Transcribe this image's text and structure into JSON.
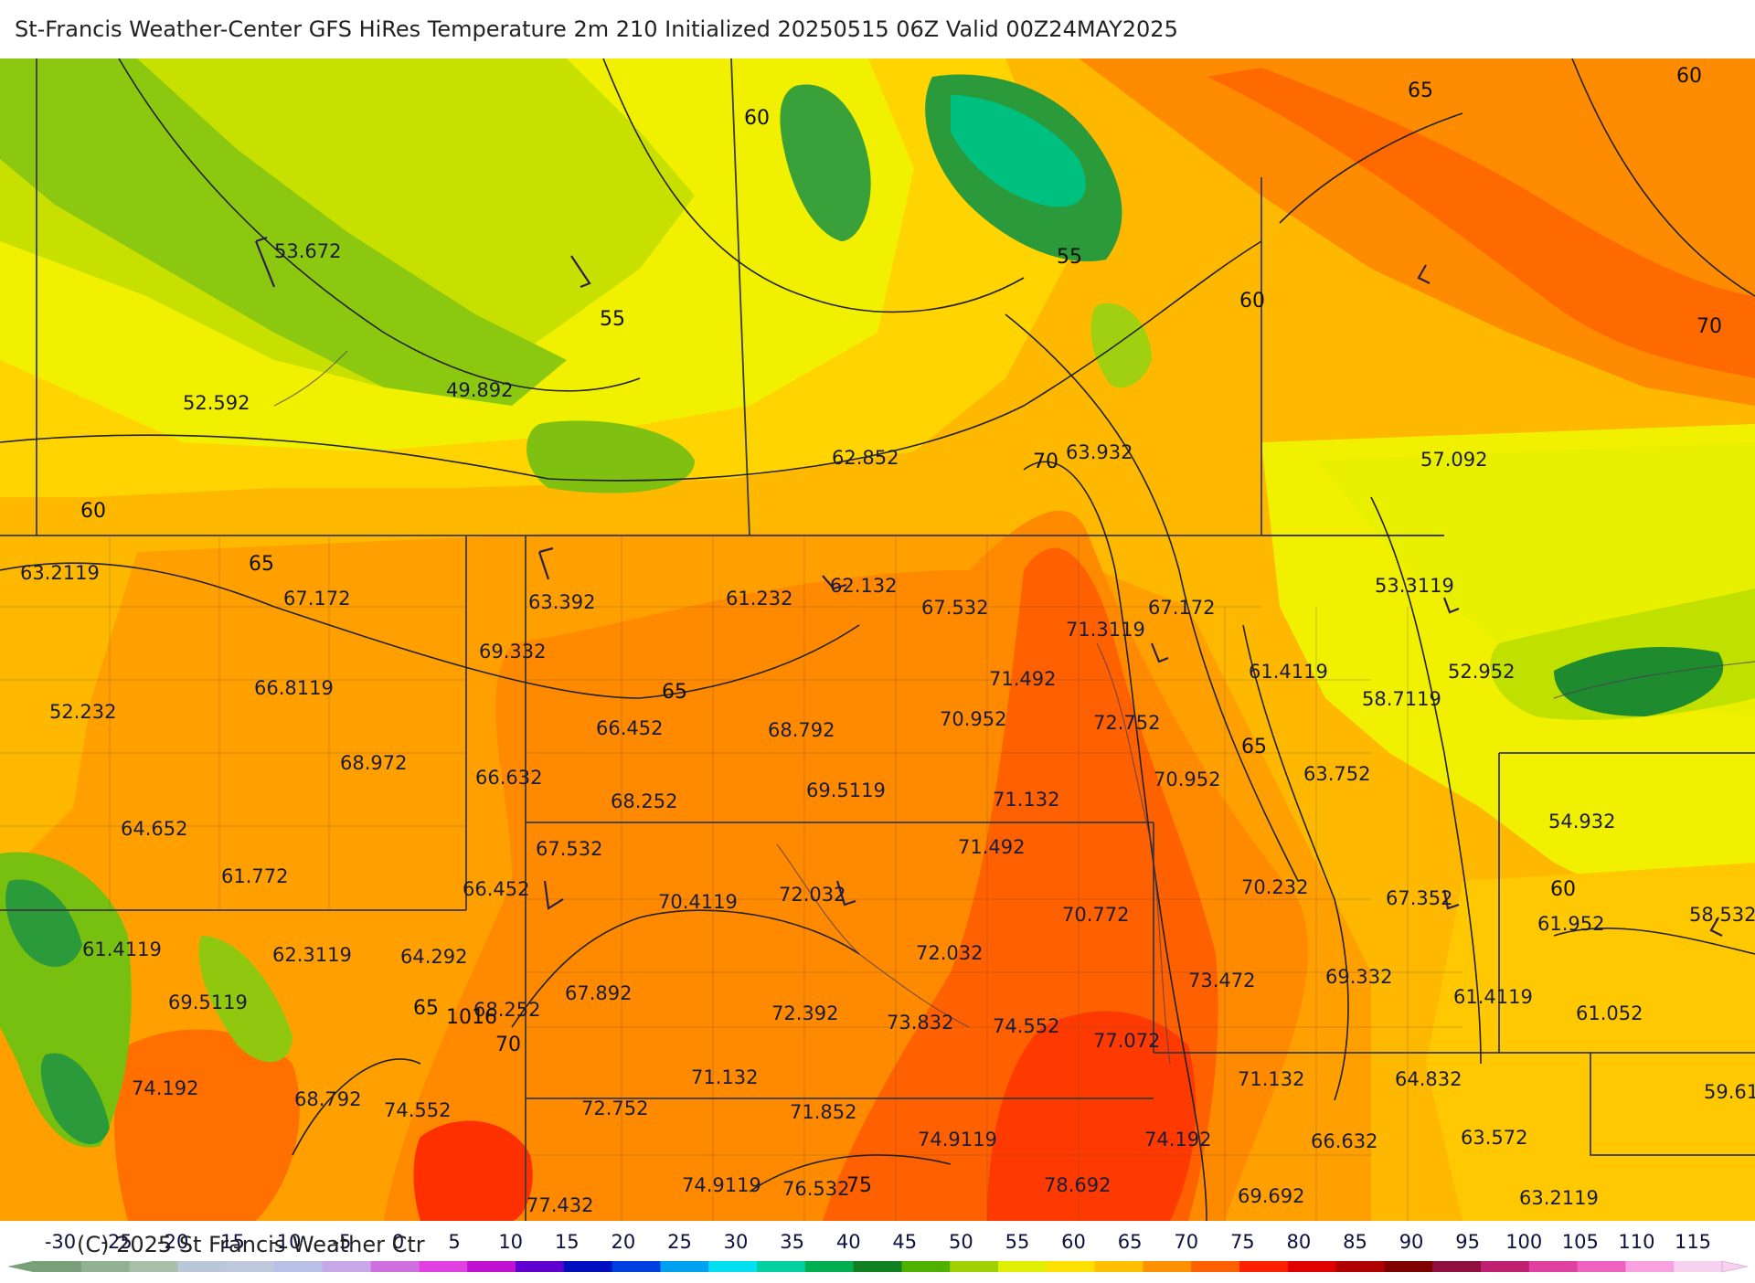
{
  "title": "St-Francis Weather-Center GFS HiRes Temperature 2m  210 Initialized 20250515 06Z Valid 00Z24MAY2025",
  "copyright": "(C) 2025 St Francis Weather Ctr",
  "colors": {
    "border": "#3a3a3a",
    "contour": "#222222",
    "t45": "#1e8c2e",
    "t50": "#7cc010",
    "t55": "#e8f000",
    "t60": "#ffd000",
    "t65": "#ffac00",
    "t70": "#ff8800",
    "t75": "#ff5a00",
    "t80": "#ff2200"
  },
  "legend": {
    "ticks": [
      "-30",
      "-25",
      "-20",
      "-15",
      "-10",
      "-5",
      "0",
      "5",
      "10",
      "15",
      "20",
      "25",
      "30",
      "35",
      "40",
      "45",
      "50",
      "55",
      "60",
      "65",
      "70",
      "75",
      "80",
      "85",
      "90",
      "95",
      "100",
      "105",
      "110",
      "115"
    ],
    "colors": [
      "#7aa07a",
      "#92b092",
      "#a8c0a8",
      "#b8c8d8",
      "#c0c8e0",
      "#b8c0e8",
      "#c8a8e8",
      "#d070e0",
      "#e040e0",
      "#c010d0",
      "#6000d0",
      "#0010c0",
      "#0040e0",
      "#00a0f0",
      "#00e0f0",
      "#00d0a0",
      "#00b050",
      "#108020",
      "#50b000",
      "#a0d000",
      "#e0f000",
      "#ffe000",
      "#ffc000",
      "#ff9000",
      "#ff6000",
      "#ff2000",
      "#e00000",
      "#b00000",
      "#800000",
      "#901040",
      "#c02070",
      "#e040a0",
      "#f060c0",
      "#f8a0e0",
      "#f8d0f0"
    ]
  },
  "map": {
    "values": [
      "53.672",
      "52.592",
      "49.892",
      "62.852",
      "63.932",
      "57.092",
      "63.2119",
      "67.172",
      "63.392",
      "61.232",
      "62.132",
      "67.532",
      "71.3119",
      "67.172",
      "53.3119",
      "69.332",
      "66.8119",
      "52.232",
      "71.492",
      "61.4119",
      "58.7119",
      "52.952",
      "66.452",
      "68.792",
      "70.952",
      "72.752",
      "68.972",
      "66.632",
      "68.252",
      "69.5119",
      "71.132",
      "70.952",
      "63.752",
      "54.932",
      "64.652",
      "67.532",
      "71.492",
      "61.772",
      "66.452",
      "70.4119",
      "72.032",
      "70.772",
      "70.232",
      "67.352",
      "61.952",
      "58.532",
      "61.4119",
      "62.3119",
      "64.292",
      "72.032",
      "73.472",
      "69.332",
      "69.5119",
      "67.892",
      "68.252",
      "72.392",
      "73.832",
      "74.552",
      "77.072",
      "61.4119",
      "61.052",
      "74.192",
      "71.132",
      "71.132",
      "64.832",
      "59.61",
      "68.792",
      "74.552",
      "72.752",
      "71.852",
      "74.9119",
      "74.192",
      "66.632",
      "63.572",
      "77.432",
      "74.9119",
      "76.532",
      "78.692",
      "69.692",
      "63.2119"
    ],
    "contour_labels": [
      "60",
      "55",
      "55",
      "65",
      "60",
      "60",
      "70",
      "60",
      "65",
      "65",
      "70",
      "65",
      "60",
      "65",
      "1016",
      "70",
      "75"
    ]
  }
}
